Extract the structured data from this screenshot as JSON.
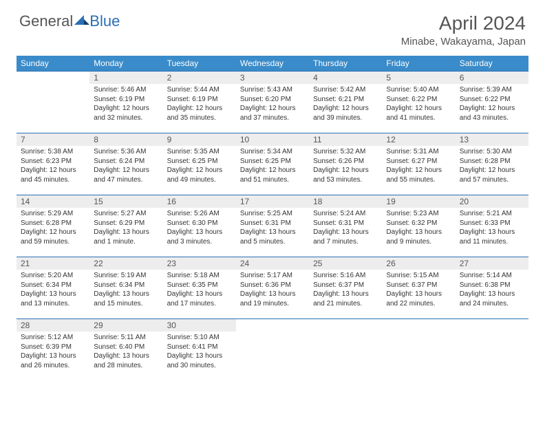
{
  "logo": {
    "part1": "General",
    "part2": "Blue"
  },
  "title": "April 2024",
  "location": "Minabe, Wakayama, Japan",
  "colors": {
    "header_bg": "#3a8bc9",
    "accent": "#2a6fb5",
    "daynum_bg": "#ededed",
    "text": "#333333",
    "muted": "#555555",
    "background": "#ffffff"
  },
  "weekdays": [
    "Sunday",
    "Monday",
    "Tuesday",
    "Wednesday",
    "Thursday",
    "Friday",
    "Saturday"
  ],
  "grid": [
    [
      null,
      {
        "n": "1",
        "sr": "5:46 AM",
        "ss": "6:19 PM",
        "dl": "12 hours and 32 minutes."
      },
      {
        "n": "2",
        "sr": "5:44 AM",
        "ss": "6:19 PM",
        "dl": "12 hours and 35 minutes."
      },
      {
        "n": "3",
        "sr": "5:43 AM",
        "ss": "6:20 PM",
        "dl": "12 hours and 37 minutes."
      },
      {
        "n": "4",
        "sr": "5:42 AM",
        "ss": "6:21 PM",
        "dl": "12 hours and 39 minutes."
      },
      {
        "n": "5",
        "sr": "5:40 AM",
        "ss": "6:22 PM",
        "dl": "12 hours and 41 minutes."
      },
      {
        "n": "6",
        "sr": "5:39 AM",
        "ss": "6:22 PM",
        "dl": "12 hours and 43 minutes."
      }
    ],
    [
      {
        "n": "7",
        "sr": "5:38 AM",
        "ss": "6:23 PM",
        "dl": "12 hours and 45 minutes."
      },
      {
        "n": "8",
        "sr": "5:36 AM",
        "ss": "6:24 PM",
        "dl": "12 hours and 47 minutes."
      },
      {
        "n": "9",
        "sr": "5:35 AM",
        "ss": "6:25 PM",
        "dl": "12 hours and 49 minutes."
      },
      {
        "n": "10",
        "sr": "5:34 AM",
        "ss": "6:25 PM",
        "dl": "12 hours and 51 minutes."
      },
      {
        "n": "11",
        "sr": "5:32 AM",
        "ss": "6:26 PM",
        "dl": "12 hours and 53 minutes."
      },
      {
        "n": "12",
        "sr": "5:31 AM",
        "ss": "6:27 PM",
        "dl": "12 hours and 55 minutes."
      },
      {
        "n": "13",
        "sr": "5:30 AM",
        "ss": "6:28 PM",
        "dl": "12 hours and 57 minutes."
      }
    ],
    [
      {
        "n": "14",
        "sr": "5:29 AM",
        "ss": "6:28 PM",
        "dl": "12 hours and 59 minutes."
      },
      {
        "n": "15",
        "sr": "5:27 AM",
        "ss": "6:29 PM",
        "dl": "13 hours and 1 minute."
      },
      {
        "n": "16",
        "sr": "5:26 AM",
        "ss": "6:30 PM",
        "dl": "13 hours and 3 minutes."
      },
      {
        "n": "17",
        "sr": "5:25 AM",
        "ss": "6:31 PM",
        "dl": "13 hours and 5 minutes."
      },
      {
        "n": "18",
        "sr": "5:24 AM",
        "ss": "6:31 PM",
        "dl": "13 hours and 7 minutes."
      },
      {
        "n": "19",
        "sr": "5:23 AM",
        "ss": "6:32 PM",
        "dl": "13 hours and 9 minutes."
      },
      {
        "n": "20",
        "sr": "5:21 AM",
        "ss": "6:33 PM",
        "dl": "13 hours and 11 minutes."
      }
    ],
    [
      {
        "n": "21",
        "sr": "5:20 AM",
        "ss": "6:34 PM",
        "dl": "13 hours and 13 minutes."
      },
      {
        "n": "22",
        "sr": "5:19 AM",
        "ss": "6:34 PM",
        "dl": "13 hours and 15 minutes."
      },
      {
        "n": "23",
        "sr": "5:18 AM",
        "ss": "6:35 PM",
        "dl": "13 hours and 17 minutes."
      },
      {
        "n": "24",
        "sr": "5:17 AM",
        "ss": "6:36 PM",
        "dl": "13 hours and 19 minutes."
      },
      {
        "n": "25",
        "sr": "5:16 AM",
        "ss": "6:37 PM",
        "dl": "13 hours and 21 minutes."
      },
      {
        "n": "26",
        "sr": "5:15 AM",
        "ss": "6:37 PM",
        "dl": "13 hours and 22 minutes."
      },
      {
        "n": "27",
        "sr": "5:14 AM",
        "ss": "6:38 PM",
        "dl": "13 hours and 24 minutes."
      }
    ],
    [
      {
        "n": "28",
        "sr": "5:12 AM",
        "ss": "6:39 PM",
        "dl": "13 hours and 26 minutes."
      },
      {
        "n": "29",
        "sr": "5:11 AM",
        "ss": "6:40 PM",
        "dl": "13 hours and 28 minutes."
      },
      {
        "n": "30",
        "sr": "5:10 AM",
        "ss": "6:41 PM",
        "dl": "13 hours and 30 minutes."
      },
      null,
      null,
      null,
      null
    ]
  ],
  "labels": {
    "sunrise": "Sunrise:",
    "sunset": "Sunset:",
    "daylight": "Daylight:"
  }
}
